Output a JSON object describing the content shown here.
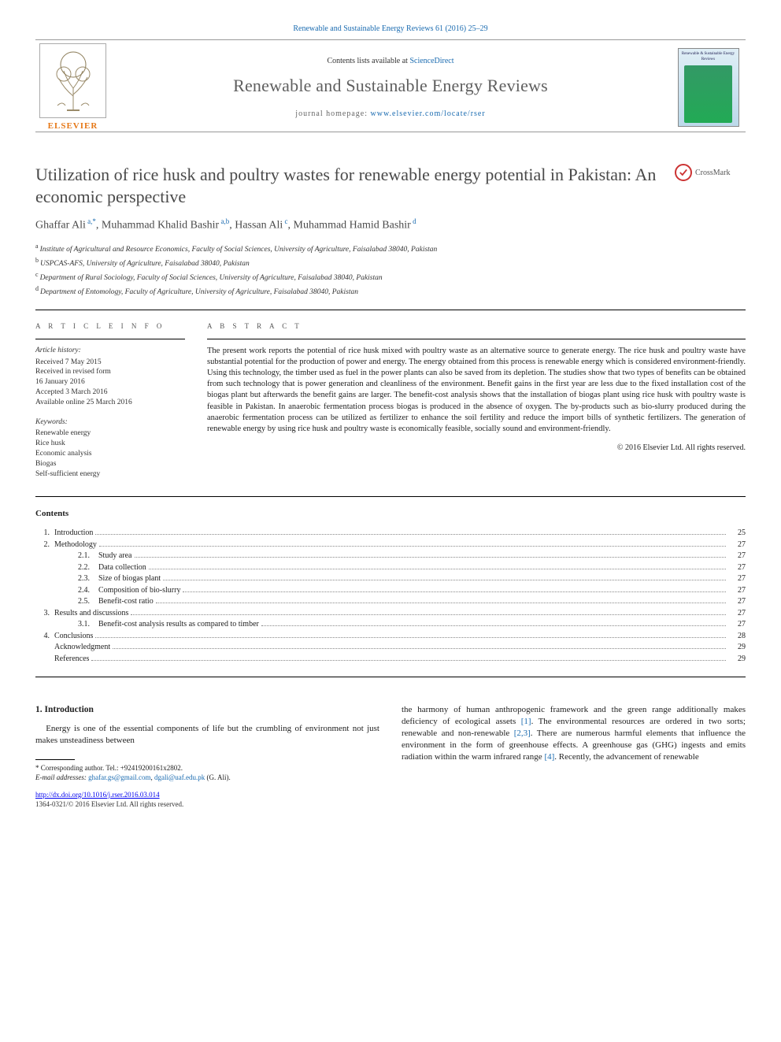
{
  "journal": {
    "citation_line": "Renewable and Sustainable Energy Reviews 61 (2016) 25–29",
    "contents_lists_prefix": "Contents lists available at ",
    "contents_lists_link": "ScienceDirect",
    "title": "Renewable and Sustainable Energy Reviews",
    "homepage_prefix": "journal homepage: ",
    "homepage_url": "www.elsevier.com/locate/rser",
    "publisher_logo_text": "ELSEVIER",
    "cover_thumb_text": "Renewable & Sustainable Energy Reviews"
  },
  "colors": {
    "link": "#1a6bb0",
    "elsevier_orange": "#e67817",
    "title_gray": "#4a4a4a",
    "body_text": "#222222",
    "rule": "#000000"
  },
  "article": {
    "title": "Utilization of rice husk and poultry wastes for renewable energy potential in Pakistan: An economic perspective",
    "crossmark_label": "CrossMark",
    "authors_html_parts": [
      {
        "name": "Ghaffar Ali",
        "sup": "a,*"
      },
      {
        "name": ", Muhammad Khalid Bashir",
        "sup": "a,b"
      },
      {
        "name": ", Hassan Ali",
        "sup": "c"
      },
      {
        "name": ", Muhammad Hamid Bashir",
        "sup": "d"
      }
    ],
    "affiliations": [
      {
        "key": "a",
        "text": "Institute of Agricultural and Resource Economics, Faculty of Social Sciences, University of Agriculture, Faisalabad 38040, Pakistan"
      },
      {
        "key": "b",
        "text": "USPCAS-AFS, University of Agriculture, Faisalabad 38040, Pakistan"
      },
      {
        "key": "c",
        "text": "Department of Rural Sociology, Faculty of Social Sciences, University of Agriculture, Faisalabad 38040, Pakistan"
      },
      {
        "key": "d",
        "text": "Department of Entomology, Faculty of Agriculture, University of Agriculture, Faisalabad 38040, Pakistan"
      }
    ]
  },
  "article_info_heading": "A R T I C L E  I N F O",
  "article_history": {
    "label": "Article history:",
    "items": [
      "Received 7 May 2015",
      "Received in revised form",
      "16 January 2016",
      "Accepted 3 March 2016",
      "Available online 25 March 2016"
    ]
  },
  "keywords": {
    "label": "Keywords:",
    "items": [
      "Renewable energy",
      "Rice husk",
      "Economic analysis",
      "Biogas",
      "Self-sufficient energy"
    ]
  },
  "abstract": {
    "heading": "A B S T R A C T",
    "text": "The present work reports the potential of rice husk mixed with poultry waste as an alternative source to generate energy. The rice husk and poultry waste have substantial potential for the production of power and energy. The energy obtained from this process is renewable energy which is considered environment-friendly. Using this technology, the timber used as fuel in the power plants can also be saved from its depletion. The studies show that two types of benefits can be obtained from such technology that is power generation and cleanliness of the environment. Benefit gains in the first year are less due to the fixed installation cost of the biogas plant but afterwards the benefit gains are larger. The benefit-cost analysis shows that the installation of biogas plant using rice husk with poultry waste is feasible in Pakistan. In anaerobic fermentation process biogas is produced in the absence of oxygen. The by-products such as bio-slurry produced during the anaerobic fermentation process can be utilized as fertilizer to enhance the soil fertility and reduce the import bills of synthetic fertilizers. The generation of renewable energy by using rice husk and poultry waste is economically feasible, socially sound and environment-friendly.",
    "copyright": "© 2016 Elsevier Ltd. All rights reserved."
  },
  "contents": {
    "heading": "Contents",
    "entries": [
      {
        "num": "1.",
        "label": "Introduction",
        "page": "25"
      },
      {
        "num": "2.",
        "label": "Methodology",
        "page": "27"
      },
      {
        "sub": true,
        "subnum": "2.1.",
        "label": "Study area",
        "page": "27"
      },
      {
        "sub": true,
        "subnum": "2.2.",
        "label": "Data collection",
        "page": "27"
      },
      {
        "sub": true,
        "subnum": "2.3.",
        "label": "Size of biogas plant",
        "page": "27"
      },
      {
        "sub": true,
        "subnum": "2.4.",
        "label": "Composition of bio-slurry",
        "page": "27"
      },
      {
        "sub": true,
        "subnum": "2.5.",
        "label": "Benefit-cost ratio",
        "page": "27"
      },
      {
        "num": "3.",
        "label": "Results and discussions",
        "page": "27"
      },
      {
        "sub": true,
        "subnum": "3.1.",
        "label": "Benefit-cost analysis results as compared to timber",
        "page": "27"
      },
      {
        "num": "4.",
        "label": "Conclusions",
        "page": "28"
      },
      {
        "num": "",
        "label": "Acknowledgment",
        "page": "29"
      },
      {
        "num": "",
        "label": "References",
        "page": "29"
      }
    ]
  },
  "body": {
    "section_heading": "1.  Introduction",
    "para1": "Energy is one of the essential components of life but the crumbling of environment not just makes unsteadiness between",
    "para2_prefix": "the harmony of human anthropogenic framework and the green range additionally makes deficiency of ecological assets ",
    "ref1": "[1]",
    "para2_mid1": ". The environmental resources are ordered in two sorts; renewable and non-renewable ",
    "ref23": "[2,3]",
    "para2_mid2": ". There are numerous harmful elements that influence the environment in the form of greenhouse effects. A greenhouse gas (GHG) ingests and emits radiation within the warm infrared range ",
    "ref4": "[4]",
    "para2_end": ". Recently, the advancement of renewable"
  },
  "footnotes": {
    "corr_label": "* Corresponding author. Tel.: ",
    "corr_tel": "+92419200161x2802.",
    "email_label": "E-mail addresses: ",
    "email1": "ghafar.gs@gmail.com",
    "email_sep": ", ",
    "email2": "dgali@uaf.edu.pk",
    "email_suffix": " (G. Ali)."
  },
  "doi": {
    "url": "http://dx.doi.org/10.1016/j.rser.2016.03.014",
    "issn_line": "1364-0321/© 2016 Elsevier Ltd. All rights reserved."
  }
}
